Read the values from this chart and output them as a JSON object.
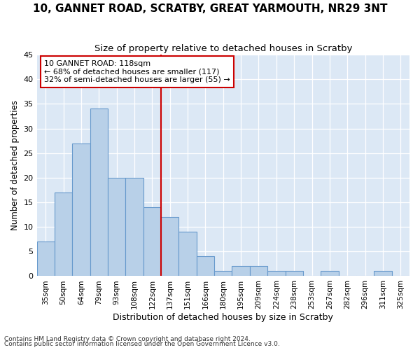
{
  "title1": "10, GANNET ROAD, SCRATBY, GREAT YARMOUTH, NR29 3NT",
  "title2": "Size of property relative to detached houses in Scratby",
  "xlabel": "Distribution of detached houses by size in Scratby",
  "ylabel": "Number of detached properties",
  "categories": [
    "35sqm",
    "50sqm",
    "64sqm",
    "79sqm",
    "93sqm",
    "108sqm",
    "122sqm",
    "137sqm",
    "151sqm",
    "166sqm",
    "180sqm",
    "195sqm",
    "209sqm",
    "224sqm",
    "238sqm",
    "253sqm",
    "267sqm",
    "282sqm",
    "296sqm",
    "311sqm",
    "325sqm"
  ],
  "values": [
    7,
    17,
    27,
    34,
    20,
    20,
    14,
    12,
    9,
    4,
    1,
    2,
    2,
    1,
    1,
    0,
    1,
    0,
    0,
    1,
    0
  ],
  "bar_color": "#b8d0e8",
  "bar_edge_color": "#6699cc",
  "vline_x": 6.5,
  "vline_color": "#cc0000",
  "ylim": [
    0,
    45
  ],
  "yticks": [
    0,
    5,
    10,
    15,
    20,
    25,
    30,
    35,
    40,
    45
  ],
  "annotation_title": "10 GANNET ROAD: 118sqm",
  "annotation_line1": "← 68% of detached houses are smaller (117)",
  "annotation_line2": "32% of semi-detached houses are larger (55) →",
  "annotation_box_color": "#cc0000",
  "footnote1": "Contains HM Land Registry data © Crown copyright and database right 2024.",
  "footnote2": "Contains public sector information licensed under the Open Government Licence v3.0.",
  "fig_bg_color": "#ffffff",
  "plot_bg_color": "#dce8f5",
  "title1_fontsize": 11,
  "title2_fontsize": 9.5,
  "ylabel_fontsize": 8.5,
  "xlabel_fontsize": 9,
  "footnote_fontsize": 6.5
}
